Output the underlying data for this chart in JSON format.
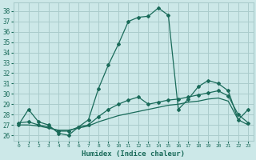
{
  "bg_color": "#cce8e8",
  "grid_color": "#aacccc",
  "line_color": "#1a6b5a",
  "xlim": [
    -0.5,
    23.5
  ],
  "ylim": [
    25.5,
    38.8
  ],
  "yticks": [
    26,
    27,
    28,
    29,
    30,
    31,
    32,
    33,
    34,
    35,
    36,
    37,
    38
  ],
  "xticks": [
    0,
    1,
    2,
    3,
    4,
    5,
    6,
    7,
    8,
    9,
    10,
    11,
    12,
    13,
    14,
    15,
    16,
    17,
    18,
    19,
    20,
    21,
    22,
    23
  ],
  "xlabel": "Humidex (Indice chaleur)",
  "series": {
    "main": [
      27.0,
      28.5,
      27.3,
      27.0,
      26.2,
      26.0,
      26.8,
      27.5,
      30.5,
      32.8,
      34.8,
      37.0,
      37.4,
      37.5,
      38.3,
      37.6,
      28.5,
      29.5,
      30.7,
      31.3,
      31.0,
      30.3,
      27.5,
      28.5
    ],
    "line2": [
      27.2,
      27.3,
      27.0,
      26.8,
      26.4,
      26.4,
      26.8,
      27.0,
      27.8,
      28.5,
      29.0,
      29.4,
      29.7,
      29.0,
      29.2,
      29.4,
      29.5,
      29.7,
      29.9,
      30.1,
      30.3,
      29.8,
      28.0,
      27.2
    ],
    "line3": [
      27.0,
      27.0,
      26.9,
      26.7,
      26.5,
      26.5,
      26.7,
      26.9,
      27.3,
      27.6,
      27.9,
      28.1,
      28.3,
      28.5,
      28.7,
      28.9,
      29.0,
      29.2,
      29.3,
      29.5,
      29.6,
      29.3,
      27.5,
      27.0
    ]
  }
}
